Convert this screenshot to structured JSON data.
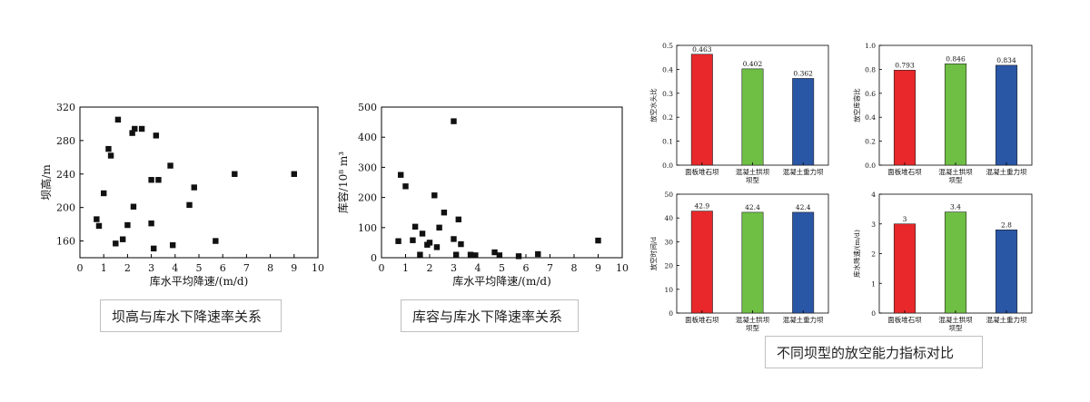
{
  "chart_data": [
    {
      "id": "height",
      "type": "scatter",
      "ylabel": "坝高/m",
      "xlabel": "库水平均降速/(m/d)",
      "xlim": [
        0,
        10
      ],
      "ylim": [
        140,
        320
      ],
      "xticks": [
        0,
        1,
        2,
        3,
        4,
        5,
        6,
        7,
        8,
        9,
        10
      ],
      "yticks": [
        160,
        200,
        240,
        280,
        320
      ],
      "points": [
        [
          0.7,
          186
        ],
        [
          0.8,
          178
        ],
        [
          1.0,
          217
        ],
        [
          1.2,
          270
        ],
        [
          1.3,
          262
        ],
        [
          1.5,
          157
        ],
        [
          1.6,
          305
        ],
        [
          1.8,
          162
        ],
        [
          2.0,
          179
        ],
        [
          2.2,
          289
        ],
        [
          2.25,
          201
        ],
        [
          2.3,
          294
        ],
        [
          2.6,
          294
        ],
        [
          3.0,
          233
        ],
        [
          3.0,
          181
        ],
        [
          3.1,
          151
        ],
        [
          3.2,
          286
        ],
        [
          3.3,
          233
        ],
        [
          3.8,
          250
        ],
        [
          3.9,
          155
        ],
        [
          4.6,
          203
        ],
        [
          4.8,
          224
        ],
        [
          5.7,
          160
        ],
        [
          6.5,
          240
        ],
        [
          9.0,
          240
        ]
      ]
    },
    {
      "id": "capacity",
      "type": "scatter",
      "ylabel": "库容/10⁸ m³",
      "xlabel": "库水平均降速/(m/d)",
      "xlim": [
        0,
        10
      ],
      "ylim": [
        0,
        500
      ],
      "xticks": [
        0,
        1,
        2,
        3,
        4,
        5,
        6,
        7,
        8,
        9,
        10
      ],
      "yticks": [
        0,
        100,
        200,
        300,
        400,
        500
      ],
      "points": [
        [
          0.7,
          55
        ],
        [
          0.8,
          275
        ],
        [
          1.0,
          237
        ],
        [
          1.3,
          58
        ],
        [
          1.4,
          103
        ],
        [
          1.6,
          10
        ],
        [
          1.7,
          80
        ],
        [
          1.9,
          43
        ],
        [
          2.0,
          50
        ],
        [
          2.2,
          207
        ],
        [
          2.3,
          35
        ],
        [
          2.4,
          100
        ],
        [
          2.6,
          150
        ],
        [
          3.0,
          453
        ],
        [
          3.0,
          62
        ],
        [
          3.1,
          10
        ],
        [
          3.2,
          127
        ],
        [
          3.3,
          45
        ],
        [
          3.7,
          10
        ],
        [
          3.9,
          8
        ],
        [
          4.7,
          18
        ],
        [
          4.9,
          8
        ],
        [
          5.7,
          5
        ],
        [
          6.5,
          12
        ],
        [
          9.0,
          57
        ]
      ]
    },
    {
      "id": "ratio",
      "type": "bar",
      "ylabel": "放空水头比",
      "ylim": [
        0,
        0.5
      ],
      "yticks": [
        "0.0",
        "0.1",
        "0.2",
        "0.3",
        "0.4",
        "0.5"
      ],
      "categories": [
        "面板堆石坝",
        "混凝土拱坝",
        "混凝土重力坝"
      ],
      "values": [
        0.463,
        0.402,
        0.362
      ],
      "value_labels": [
        "0.463",
        "0.402",
        "0.362"
      ],
      "xlabel": "坝型",
      "colors": [
        "#e8282a",
        "#6fbf44",
        "#2a56a6"
      ]
    },
    {
      "id": "volume",
      "type": "bar",
      "ylabel": "放空库容比",
      "ylim": [
        0,
        1.0
      ],
      "yticks": [
        "0.0",
        "0.2",
        "0.4",
        "0.6",
        "0.8",
        "1.0"
      ],
      "categories": [
        "面板堆石坝",
        "混凝土拱坝",
        "混凝土重力坝"
      ],
      "values": [
        0.793,
        0.846,
        0.834
      ],
      "value_labels": [
        "0.793",
        "0.846",
        "0.834"
      ],
      "xlabel": "坝型",
      "colors": [
        "#e8282a",
        "#6fbf44",
        "#2a56a6"
      ]
    },
    {
      "id": "time",
      "type": "bar",
      "ylabel": "放空时间/d",
      "ylim": [
        0,
        50
      ],
      "yticks": [
        "0",
        "10",
        "20",
        "30",
        "40",
        "50"
      ],
      "categories": [
        "面板堆石坝",
        "混凝土拱坝",
        "混凝土重力坝"
      ],
      "values": [
        42.9,
        42.4,
        42.4
      ],
      "value_labels": [
        "42.9",
        "42.4",
        "42.4"
      ],
      "xlabel": "坝型",
      "colors": [
        "#e8282a",
        "#6fbf44",
        "#2a56a6"
      ]
    },
    {
      "id": "speed",
      "type": "bar",
      "ylabel": "库水降速/(m/d)",
      "ylim": [
        0,
        4
      ],
      "yticks": [
        "0",
        "1",
        "2",
        "3",
        "4"
      ],
      "categories": [
        "面板堆石坝",
        "混凝土拱坝",
        "混凝土重力坝"
      ],
      "values": [
        3.0,
        3.4,
        2.8
      ],
      "value_labels": [
        "3",
        "3.4",
        "2.8"
      ],
      "xlabel": "坝型",
      "colors": [
        "#e8282a",
        "#6fbf44",
        "#2a56a6"
      ]
    }
  ],
  "captions": {
    "height": "坝高与库水下降速率关系",
    "capacity": "库容与库水下降速率关系",
    "bars": "不同坝型的放空能力指标对比"
  }
}
